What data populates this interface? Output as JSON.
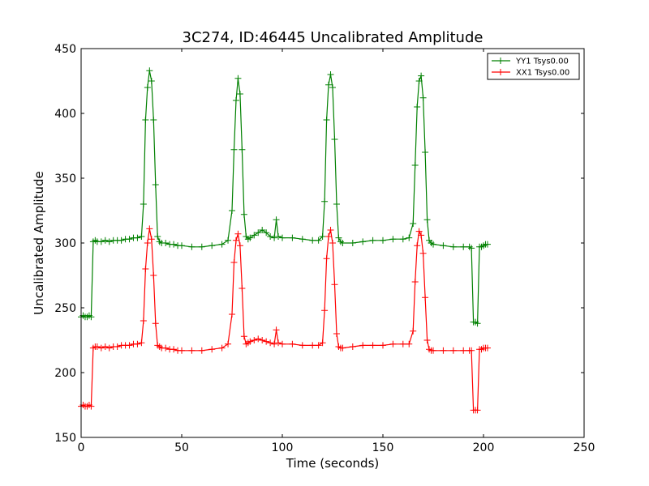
{
  "chart_data": {
    "type": "line",
    "title": "3C274, ID:46445 Uncalibrated Amplitude",
    "xlabel": "Time (seconds)",
    "ylabel": "Uncalibrated Amplitude",
    "xlim": [
      0,
      250
    ],
    "ylim": [
      150,
      450
    ],
    "xticks": [
      0,
      50,
      100,
      150,
      200,
      250
    ],
    "yticks": [
      150,
      200,
      250,
      300,
      350,
      400,
      450
    ],
    "grid": false,
    "legend_position": "top-right",
    "series": [
      {
        "name": "YY1 Tsys0.00",
        "color": "#008000",
        "marker": "plus",
        "x": [
          0,
          1,
          2,
          3,
          4,
          5,
          6,
          7,
          8,
          10,
          12,
          14,
          16,
          18,
          20,
          22,
          24,
          26,
          28,
          30,
          31,
          32,
          33,
          34,
          35,
          36,
          37,
          38,
          39,
          40,
          42,
          44,
          46,
          48,
          50,
          55,
          60,
          65,
          70,
          73,
          75,
          76,
          77,
          78,
          79,
          80,
          81,
          82,
          83,
          84,
          86,
          88,
          90,
          92,
          94,
          96,
          97,
          98,
          100,
          105,
          110,
          115,
          118,
          120,
          121,
          122,
          123,
          124,
          125,
          126,
          127,
          128,
          129,
          130,
          135,
          140,
          145,
          150,
          155,
          160,
          163,
          165,
          166,
          167,
          168,
          169,
          170,
          171,
          172,
          173,
          174,
          175,
          180,
          185,
          190,
          193,
          194,
          195,
          196,
          197,
          198,
          199,
          200,
          201,
          202
        ],
        "y": [
          243,
          244,
          243,
          243,
          244,
          243,
          301,
          302,
          301,
          301,
          302,
          301,
          302,
          302,
          302,
          303,
          303,
          304,
          304,
          305,
          330,
          395,
          420,
          433,
          425,
          395,
          345,
          305,
          301,
          300,
          300,
          299,
          299,
          298,
          298,
          297,
          297,
          298,
          299,
          302,
          325,
          372,
          410,
          427,
          415,
          372,
          322,
          305,
          303,
          304,
          306,
          308,
          310,
          308,
          305,
          304,
          318,
          305,
          304,
          304,
          303,
          302,
          302,
          305,
          332,
          395,
          422,
          430,
          420,
          380,
          330,
          304,
          301,
          300,
          300,
          301,
          302,
          302,
          303,
          303,
          304,
          315,
          360,
          405,
          425,
          429,
          412,
          370,
          318,
          302,
          300,
          299,
          298,
          297,
          297,
          297,
          296,
          239,
          239,
          238,
          297,
          297,
          298,
          299,
          299
        ]
      },
      {
        "name": "XX1 Tsys0.00",
        "color": "#ff0000",
        "marker": "plus",
        "x": [
          0,
          1,
          2,
          3,
          4,
          5,
          6,
          7,
          8,
          10,
          12,
          14,
          16,
          18,
          20,
          22,
          24,
          26,
          28,
          30,
          31,
          32,
          33,
          34,
          35,
          36,
          37,
          38,
          39,
          40,
          42,
          44,
          46,
          48,
          50,
          55,
          60,
          65,
          70,
          73,
          75,
          76,
          77,
          78,
          79,
          80,
          81,
          82,
          83,
          84,
          86,
          88,
          90,
          92,
          94,
          96,
          97,
          98,
          100,
          105,
          110,
          115,
          118,
          120,
          121,
          122,
          123,
          124,
          125,
          126,
          127,
          128,
          129,
          130,
          135,
          140,
          145,
          150,
          155,
          160,
          163,
          165,
          166,
          167,
          168,
          169,
          170,
          171,
          172,
          173,
          174,
          175,
          180,
          185,
          190,
          193,
          194,
          195,
          196,
          197,
          198,
          199,
          200,
          201,
          202
        ],
        "y": [
          174,
          175,
          174,
          174,
          175,
          174,
          219,
          220,
          220,
          219,
          220,
          219,
          220,
          220,
          221,
          221,
          221,
          222,
          222,
          223,
          240,
          280,
          300,
          311,
          303,
          275,
          238,
          221,
          220,
          219,
          219,
          218,
          218,
          217,
          217,
          217,
          217,
          218,
          219,
          222,
          245,
          285,
          302,
          307,
          298,
          265,
          228,
          222,
          223,
          224,
          225,
          226,
          225,
          224,
          223,
          222,
          233,
          223,
          222,
          222,
          221,
          221,
          221,
          223,
          248,
          288,
          305,
          310,
          300,
          268,
          230,
          220,
          219,
          219,
          220,
          221,
          221,
          221,
          222,
          222,
          222,
          232,
          270,
          298,
          309,
          306,
          292,
          258,
          225,
          218,
          217,
          217,
          217,
          217,
          217,
          217,
          217,
          171,
          171,
          171,
          218,
          218,
          219,
          219,
          219
        ]
      }
    ]
  }
}
